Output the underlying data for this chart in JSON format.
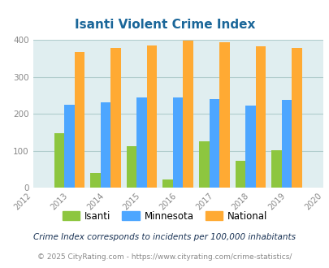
{
  "title": "Isanti Violent Crime Index",
  "years": [
    2012,
    2013,
    2014,
    2015,
    2016,
    2017,
    2018,
    2019,
    2020
  ],
  "data_years": [
    2013,
    2014,
    2015,
    2016,
    2017,
    2018,
    2019
  ],
  "isanti": [
    148,
    40,
    112,
    22,
    126,
    72,
    102
  ],
  "minnesota": [
    224,
    231,
    244,
    245,
    241,
    222,
    238
  ],
  "national": [
    368,
    378,
    386,
    398,
    394,
    383,
    379
  ],
  "bar_colors": {
    "isanti": "#8dc63f",
    "minnesota": "#4da6ff",
    "national": "#ffaa33"
  },
  "bg_color": "#e0eef0",
  "ylim": [
    0,
    400
  ],
  "yticks": [
    0,
    100,
    200,
    300,
    400
  ],
  "bar_width": 0.28,
  "legend_labels": [
    "Isanti",
    "Minnesota",
    "National"
  ],
  "footnote1": "Crime Index corresponds to incidents per 100,000 inhabitants",
  "footnote2": "© 2025 CityRating.com - https://www.cityrating.com/crime-statistics/",
  "title_color": "#1a6699",
  "footnote1_color": "#1a3355",
  "footnote2_color": "#888888",
  "grid_color": "#b0cccc",
  "tick_color": "#888888"
}
